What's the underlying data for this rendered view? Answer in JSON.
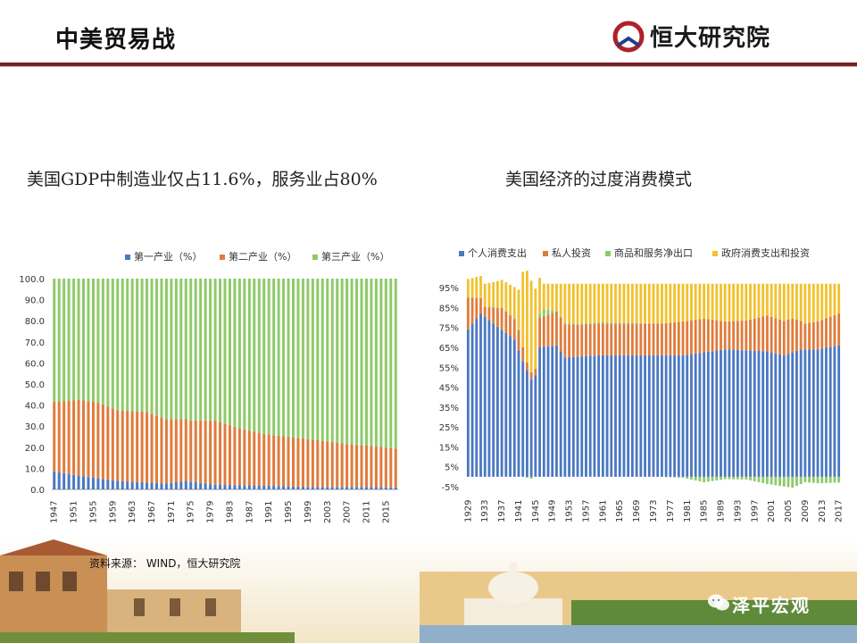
{
  "header": {
    "title": "中美贸易战",
    "logo_text": "恒大研究院"
  },
  "colors": {
    "primary": "#4a78c2",
    "secondary": "#e07b3b",
    "tertiary": "#8fca6a",
    "fourth": "#f2c12e",
    "brand": "#7a1f1f"
  },
  "left_chart": {
    "subtitle": "美国GDP中制造业仅占11.6%，服务业占80%"
  },
  "right_chart": {
    "subtitle": "美国经济的过度消费模式"
  },
  "footer": {
    "source": "资料来源： WIND，恒大研究院",
    "watermark": "泽平宏观"
  },
  "chart_data": [
    {
      "type": "bar",
      "stacked": true,
      "legend_position": "top",
      "legend": [
        "第一产业（%）",
        "第二产业（%）",
        "第三产业（%）"
      ],
      "ylim": [
        0,
        100
      ],
      "yticks": [
        "0.0",
        "10.0",
        "20.0",
        "30.0",
        "40.0",
        "50.0",
        "60.0",
        "70.0",
        "80.0",
        "90.0",
        "100.0"
      ],
      "xtick_labels": [
        "1947",
        "1951",
        "1955",
        "1959",
        "1963",
        "1967",
        "1971",
        "1975",
        "1979",
        "1983",
        "1987",
        "1991",
        "1995",
        "1999",
        "2003",
        "2007",
        "2011",
        "2015"
      ],
      "x_start": 1947,
      "x_end": 2017,
      "series": [
        {
          "name": "第一产业（%）",
          "anchors": [
            [
              1947,
              8.5
            ],
            [
              1952,
              6.5
            ],
            [
              1960,
              4
            ],
            [
              1970,
              2.8
            ],
            [
              1974,
              4
            ],
            [
              1980,
              2.2
            ],
            [
              1990,
              1.8
            ],
            [
              2000,
              1.1
            ],
            [
              2010,
              1.2
            ],
            [
              2017,
              0.9
            ]
          ]
        },
        {
          "name": "第二产业（%）",
          "anchors": [
            [
              1947,
              33
            ],
            [
              1952,
              36
            ],
            [
              1956,
              36
            ],
            [
              1960,
              33.5
            ],
            [
              1966,
              33.5
            ],
            [
              1970,
              30.5
            ],
            [
              1975,
              29
            ],
            [
              1980,
              30.5
            ],
            [
              1985,
              27
            ],
            [
              1990,
              24.5
            ],
            [
              1995,
              23.5
            ],
            [
              2000,
              22.5
            ],
            [
              2005,
              21
            ],
            [
              2008,
              20
            ],
            [
              2012,
              19.5
            ],
            [
              2017,
              18.5
            ]
          ]
        },
        {
          "name": "第三产业（%）",
          "anchors": "remainder to 100"
        }
      ]
    },
    {
      "type": "bar",
      "stacked": true,
      "legend_position": "top",
      "legend": [
        "个人消费支出",
        "私人投资",
        "商品和服务净出口",
        "政府消费支出和投资"
      ],
      "ylim": [
        -5,
        100
      ],
      "yticks": [
        "-5%",
        "5%",
        "15%",
        "25%",
        "35%",
        "45%",
        "55%",
        "65%",
        "75%",
        "85%",
        "95%"
      ],
      "xtick_labels": [
        "1929",
        "1933",
        "1937",
        "1941",
        "1945",
        "1949",
        "1953",
        "1957",
        "1961",
        "1965",
        "1969",
        "1973",
        "1977",
        "1981",
        "1985",
        "1989",
        "1993",
        "1997",
        "2001",
        "2005",
        "2009",
        "2013",
        "2017"
      ],
      "x_start": 1929,
      "x_end": 2017,
      "series": [
        {
          "name": "个人消费支出",
          "anchors": [
            [
              1929,
              74
            ],
            [
              1932,
              82
            ],
            [
              1935,
              77
            ],
            [
              1940,
              69
            ],
            [
              1942,
              58
            ],
            [
              1944,
              49
            ],
            [
              1945,
              51
            ],
            [
              1946,
              65
            ],
            [
              1950,
              66
            ],
            [
              1952,
              60
            ],
            [
              1960,
              61
            ],
            [
              1970,
              61
            ],
            [
              1980,
              61
            ],
            [
              1990,
              64
            ],
            [
              2000,
              63
            ],
            [
              2004,
              61
            ],
            [
              2008,
              64
            ],
            [
              2012,
              64
            ],
            [
              2017,
              66
            ]
          ]
        },
        {
          "name": "私人投资",
          "anchors": [
            [
              1929,
              16
            ],
            [
              1933,
              5
            ],
            [
              1937,
              11
            ],
            [
              1941,
              10
            ],
            [
              1943,
              4
            ],
            [
              1945,
              3
            ],
            [
              1946,
              15
            ],
            [
              1950,
              17
            ],
            [
              1955,
              16
            ],
            [
              1965,
              16
            ],
            [
              1975,
              16
            ],
            [
              1980,
              17
            ],
            [
              1985,
              17
            ],
            [
              1990,
              14
            ],
            [
              1995,
              15
            ],
            [
              2000,
              18
            ],
            [
              2006,
              17
            ],
            [
              2009,
              13
            ],
            [
              2012,
              14
            ],
            [
              2017,
              16
            ]
          ]
        },
        {
          "name": "商品和服务净出口",
          "anchors": [
            [
              1929,
              0.4
            ],
            [
              1935,
              0.2
            ],
            [
              1941,
              0.5
            ],
            [
              1944,
              -1
            ],
            [
              1947,
              3.5
            ],
            [
              1950,
              0.5
            ],
            [
              1960,
              0.6
            ],
            [
              1970,
              0.3
            ],
            [
              1980,
              -0.5
            ],
            [
              1985,
              -2.8
            ],
            [
              1990,
              -1.2
            ],
            [
              1995,
              -1.4
            ],
            [
              2000,
              -3.6
            ],
            [
              2006,
              -5.5
            ],
            [
              2009,
              -2.7
            ],
            [
              2012,
              -3.3
            ],
            [
              2017,
              -2.9
            ]
          ]
        },
        {
          "name": "政府消费支出和投资",
          "anchors": "remainder to ~100 (approx. 9% in 1929, peaking ~46% in 1944, ~15-20% thereafter)"
        }
      ]
    }
  ]
}
